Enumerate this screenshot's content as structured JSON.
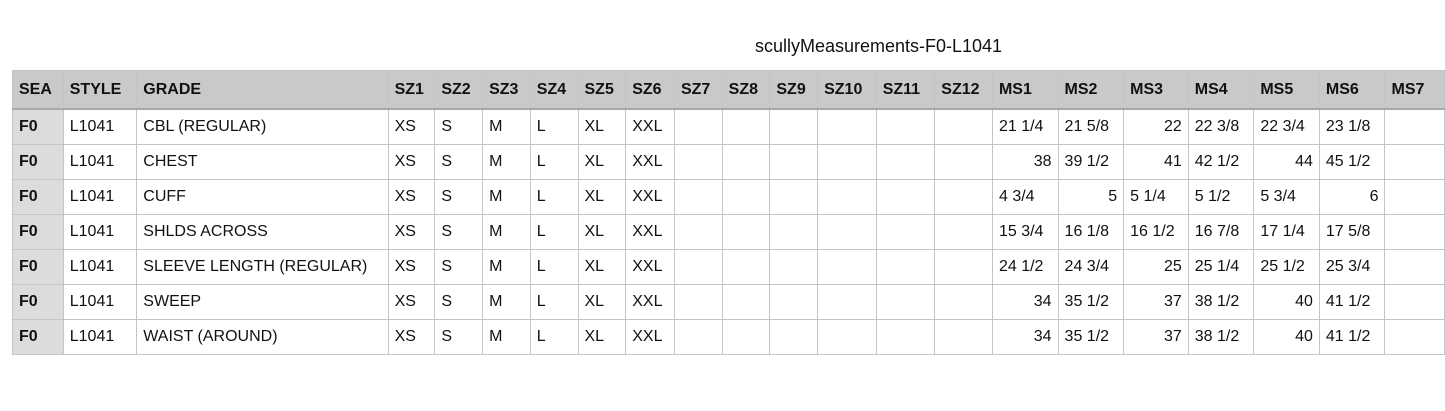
{
  "title": "scullyMeasurements-F0-L1041",
  "columns": [
    "SEA",
    "STYLE",
    "GRADE",
    "SZ1",
    "SZ2",
    "SZ3",
    "SZ4",
    "SZ5",
    "SZ6",
    "SZ7",
    "SZ8",
    "SZ9",
    "SZ10",
    "SZ11",
    "SZ12",
    "MS1",
    "MS2",
    "MS3",
    "MS4",
    "MS5",
    "MS6",
    "MS7"
  ],
  "rows": [
    [
      "F0",
      "L1041",
      "CBL (REGULAR)",
      "XS",
      "S",
      "M",
      "L",
      "XL",
      "XXL",
      "",
      "",
      "",
      "",
      "",
      "",
      "21 1/4",
      "21 5/8",
      "22",
      "22 3/8",
      "22 3/4",
      "23 1/8",
      ""
    ],
    [
      "F0",
      "L1041",
      "CHEST",
      "XS",
      "S",
      "M",
      "L",
      "XL",
      "XXL",
      "",
      "",
      "",
      "",
      "",
      "",
      "38",
      "39 1/2",
      "41",
      "42 1/2",
      "44",
      "45 1/2",
      ""
    ],
    [
      "F0",
      "L1041",
      "CUFF",
      "XS",
      "S",
      "M",
      "L",
      "XL",
      "XXL",
      "",
      "",
      "",
      "",
      "",
      "",
      "4 3/4",
      "5",
      "5 1/4",
      "5 1/2",
      "5 3/4",
      "6",
      ""
    ],
    [
      "F0",
      "L1041",
      "SHLDS ACROSS",
      "XS",
      "S",
      "M",
      "L",
      "XL",
      "XXL",
      "",
      "",
      "",
      "",
      "",
      "",
      "15 3/4",
      "16 1/8",
      "16 1/2",
      "16 7/8",
      "17 1/4",
      "17 5/8",
      ""
    ],
    [
      "F0",
      "L1041",
      "SLEEVE LENGTH (REGULAR)",
      "XS",
      "S",
      "M",
      "L",
      "XL",
      "XXL",
      "",
      "",
      "",
      "",
      "",
      "",
      "24 1/2",
      "24 3/4",
      "25",
      "25 1/4",
      "25 1/2",
      "25 3/4",
      ""
    ],
    [
      "F0",
      "L1041",
      "SWEEP",
      "XS",
      "S",
      "M",
      "L",
      "XL",
      "XXL",
      "",
      "",
      "",
      "",
      "",
      "",
      "34",
      "35 1/2",
      "37",
      "38 1/2",
      "40",
      "41 1/2",
      ""
    ],
    [
      "F0",
      "L1041",
      "WAIST (AROUND)",
      "XS",
      "S",
      "M",
      "L",
      "XL",
      "XXL",
      "",
      "",
      "",
      "",
      "",
      "",
      "34",
      "35 1/2",
      "37",
      "38 1/2",
      "40",
      "41 1/2",
      ""
    ]
  ]
}
